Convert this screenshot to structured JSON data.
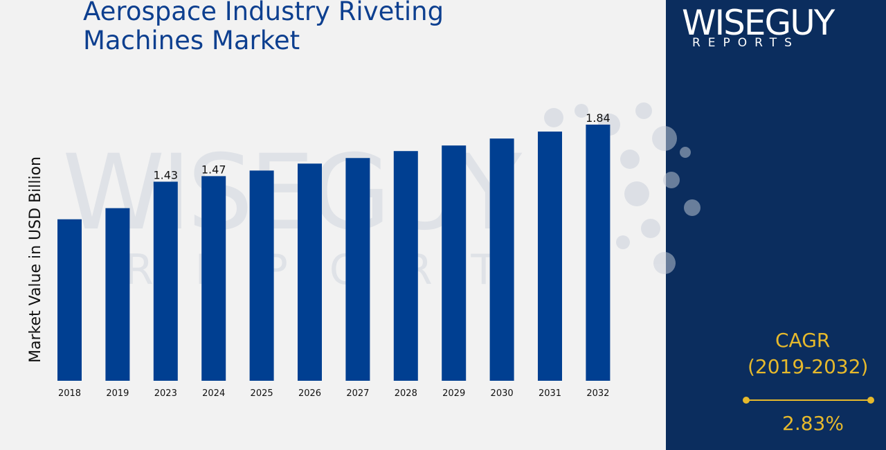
{
  "title": "Aerospace Industry Riveting Machines Market",
  "logo": {
    "main": "WISEGUY",
    "sub": "REPORTS"
  },
  "cagr": {
    "label": "CAGR",
    "period": "(2019-2032)",
    "value": "2.83%"
  },
  "colors": {
    "bar": "#003f91",
    "panel": "#0b2d5e",
    "accent": "#e6b92c",
    "title": "#0d3f8f"
  },
  "chart_data": {
    "type": "bar",
    "ylabel": "Market Value in USD Billion",
    "xlabel": "",
    "categories": [
      "2018",
      "2019",
      "2023",
      "2024",
      "2025",
      "2026",
      "2027",
      "2028",
      "2029",
      "2030",
      "2031",
      "2032"
    ],
    "values": [
      1.16,
      1.24,
      1.43,
      1.47,
      1.51,
      1.56,
      1.6,
      1.65,
      1.69,
      1.74,
      1.79,
      1.84
    ],
    "data_labels": [
      "",
      "",
      "1.43",
      "1.47",
      "",
      "",
      "",
      "",
      "",
      "",
      "",
      "1.84"
    ],
    "ylim": [
      0,
      1.84
    ]
  }
}
